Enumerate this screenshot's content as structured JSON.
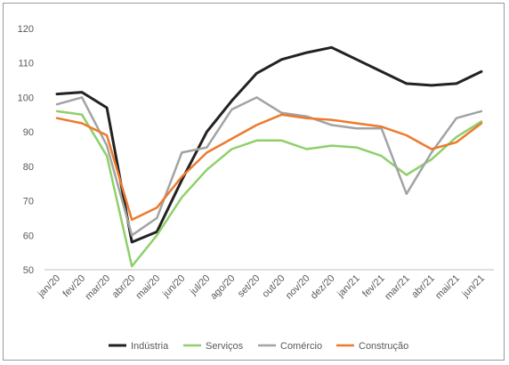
{
  "chart_data": {
    "type": "line",
    "title": "",
    "xlabel": "",
    "ylabel": "",
    "ylim": [
      50,
      120
    ],
    "yticks": [
      50,
      60,
      70,
      80,
      90,
      100,
      110,
      120
    ],
    "grid": false,
    "legend_position": "bottom",
    "categories": [
      "jan/20",
      "fev/20",
      "mar/20",
      "abr/20",
      "mai/20",
      "jun/20",
      "jul/20",
      "ago/20",
      "set/20",
      "out/20",
      "nov/20",
      "dez/20",
      "jan/21",
      "fev/21",
      "mar/21",
      "abr/21",
      "mai/21",
      "jun/21"
    ],
    "series": [
      {
        "name": "Indústria",
        "color": "#222222",
        "values": [
          101,
          101.5,
          97,
          58,
          61,
          76,
          90,
          99,
          107,
          111,
          113,
          114.5,
          111,
          107.5,
          104,
          103.5,
          104,
          107.5
        ]
      },
      {
        "name": "Serviços",
        "color": "#8fcf6b",
        "values": [
          96,
          95,
          83,
          51,
          60,
          71,
          79,
          85,
          87.5,
          87.5,
          85,
          86,
          85.5,
          83,
          77.5,
          82,
          88.5,
          93
        ]
      },
      {
        "name": "Comércio",
        "color": "#a3a3a3",
        "values": [
          98,
          100,
          86,
          60,
          65,
          84,
          85.5,
          96.5,
          100,
          95.5,
          94.5,
          92,
          91,
          91,
          72,
          84,
          94,
          96
        ]
      },
      {
        "name": "Construção",
        "color": "#ec7a2e",
        "values": [
          94,
          92.5,
          89,
          64.5,
          68,
          77,
          84,
          88,
          92,
          95,
          94,
          93.5,
          92.5,
          91.5,
          89,
          85,
          87,
          92.5
        ]
      }
    ]
  }
}
